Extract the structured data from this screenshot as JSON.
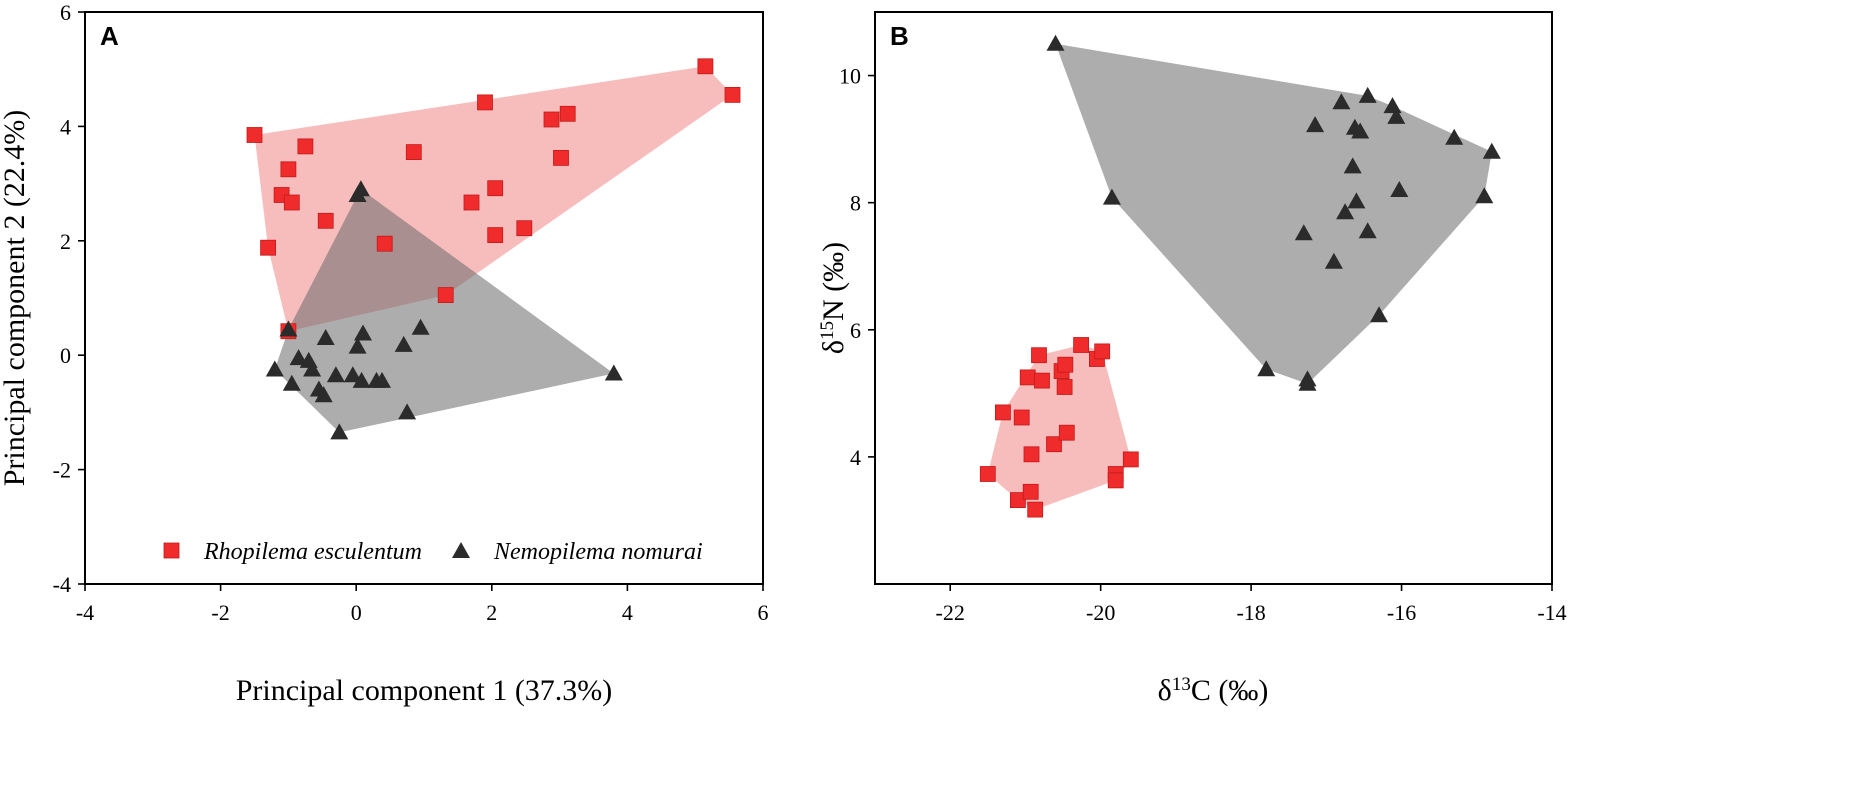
{
  "colors": {
    "red_marker": "#f02b2b",
    "red_hull": "#ef7b7b",
    "gray_marker": "#2b2b2b",
    "gray_hull": "#6a6a6a"
  },
  "legend": {
    "series1": "Rhopilema esculentum",
    "series2": "Nemopilema nomurai"
  },
  "chart_data": [
    {
      "type": "scatter",
      "panel": "A",
      "xlabel": "Principal component 1 (37.3%)",
      "ylabel": "Principal component 2 (22.4%)",
      "xlim": [
        -4,
        6
      ],
      "ylim": [
        -4,
        6
      ],
      "xticks": [
        -4,
        -2,
        0,
        2,
        4,
        6
      ],
      "yticks": [
        -4,
        -2,
        0,
        2,
        4,
        6
      ],
      "xtick_labels": [
        "-4",
        "-2",
        "0",
        "2",
        "4",
        "6"
      ],
      "ytick_labels": [
        "-4",
        "-2",
        "0",
        "2",
        "4",
        "6"
      ],
      "legend_position": "bottom",
      "series": [
        {
          "name": "Rhopilema esculentum",
          "marker": "square",
          "hull": true,
          "points": [
            [
              -1.5,
              3.85
            ],
            [
              -1.3,
              1.88
            ],
            [
              -1.1,
              2.8
            ],
            [
              -1.0,
              3.25
            ],
            [
              -0.95,
              2.67
            ],
            [
              -0.75,
              3.65
            ],
            [
              -0.45,
              2.35
            ],
            [
              0.42,
              1.95
            ],
            [
              0.85,
              3.55
            ],
            [
              1.32,
              1.05
            ],
            [
              1.7,
              2.67
            ],
            [
              1.9,
              4.42
            ],
            [
              2.05,
              2.1
            ],
            [
              2.05,
              2.92
            ],
            [
              2.48,
              2.22
            ],
            [
              2.88,
              4.12
            ],
            [
              3.02,
              3.45
            ],
            [
              3.12,
              4.22
            ],
            [
              5.15,
              5.05
            ],
            [
              5.55,
              4.55
            ],
            [
              -1.0,
              0.42
            ]
          ]
        },
        {
          "name": "Nemopilema nomurai",
          "marker": "triangle",
          "hull": true,
          "points": [
            [
              -1.0,
              0.45
            ],
            [
              -1.2,
              -0.25
            ],
            [
              -0.95,
              -0.5
            ],
            [
              -0.85,
              -0.05
            ],
            [
              -0.7,
              -0.1
            ],
            [
              -0.65,
              -0.25
            ],
            [
              -0.55,
              -0.6
            ],
            [
              -0.48,
              -0.7
            ],
            [
              -0.45,
              0.3
            ],
            [
              -0.3,
              -0.35
            ],
            [
              -0.25,
              -1.35
            ],
            [
              -0.05,
              -0.35
            ],
            [
              0.02,
              0.15
            ],
            [
              0.08,
              -0.45
            ],
            [
              0.1,
              0.38
            ],
            [
              0.3,
              -0.45
            ],
            [
              0.38,
              -0.45
            ],
            [
              0.7,
              0.18
            ],
            [
              0.75,
              -1.0
            ],
            [
              0.95,
              0.48
            ],
            [
              0.02,
              2.8
            ],
            [
              0.07,
              2.9
            ],
            [
              3.8,
              -0.32
            ]
          ]
        }
      ]
    },
    {
      "type": "scatter",
      "panel": "B",
      "xlabel": "δ13C (‰)",
      "ylabel": "δ15N (‰)",
      "xlim": [
        -23,
        -14
      ],
      "ylim": [
        2.0,
        11.0
      ],
      "xticks": [
        -22,
        -20,
        -18,
        -16,
        -14
      ],
      "yticks": [
        4,
        6,
        8,
        10
      ],
      "xtick_labels": [
        "-22",
        "-20",
        "-18",
        "-16",
        "-14"
      ],
      "ytick_labels": [
        "4",
        "6",
        "8",
        "10"
      ],
      "series": [
        {
          "name": "Rhopilema esculentum",
          "marker": "square",
          "hull": true,
          "points": [
            [
              -21.5,
              3.73
            ],
            [
              -21.3,
              4.7
            ],
            [
              -21.1,
              3.32
            ],
            [
              -21.05,
              4.62
            ],
            [
              -20.97,
              5.25
            ],
            [
              -20.92,
              4.04
            ],
            [
              -20.93,
              3.45
            ],
            [
              -20.87,
              3.17
            ],
            [
              -20.82,
              5.6
            ],
            [
              -20.78,
              5.2
            ],
            [
              -20.62,
              4.2
            ],
            [
              -20.52,
              5.35
            ],
            [
              -20.48,
              5.1
            ],
            [
              -20.47,
              5.45
            ],
            [
              -20.45,
              4.38
            ],
            [
              -20.26,
              5.76
            ],
            [
              -20.05,
              5.54
            ],
            [
              -19.98,
              5.66
            ],
            [
              -19.8,
              3.73
            ],
            [
              -19.8,
              3.63
            ],
            [
              -19.6,
              3.96
            ]
          ]
        },
        {
          "name": "Nemopilema nomurai",
          "marker": "triangle",
          "hull": true,
          "points": [
            [
              -20.6,
              10.5
            ],
            [
              -19.85,
              8.08
            ],
            [
              -17.8,
              5.38
            ],
            [
              -17.3,
              7.52
            ],
            [
              -17.25,
              5.22
            ],
            [
              -17.25,
              5.15
            ],
            [
              -17.15,
              9.22
            ],
            [
              -16.9,
              7.07
            ],
            [
              -16.8,
              9.58
            ],
            [
              -16.75,
              7.85
            ],
            [
              -16.65,
              8.57
            ],
            [
              -16.62,
              9.18
            ],
            [
              -16.6,
              8.02
            ],
            [
              -16.55,
              9.12
            ],
            [
              -16.45,
              9.68
            ],
            [
              -16.45,
              7.55
            ],
            [
              -16.3,
              6.23
            ],
            [
              -16.12,
              9.52
            ],
            [
              -16.07,
              9.35
            ],
            [
              -16.03,
              8.2
            ],
            [
              -15.3,
              9.02
            ],
            [
              -14.9,
              8.1
            ],
            [
              -14.8,
              8.8
            ]
          ]
        }
      ]
    }
  ]
}
